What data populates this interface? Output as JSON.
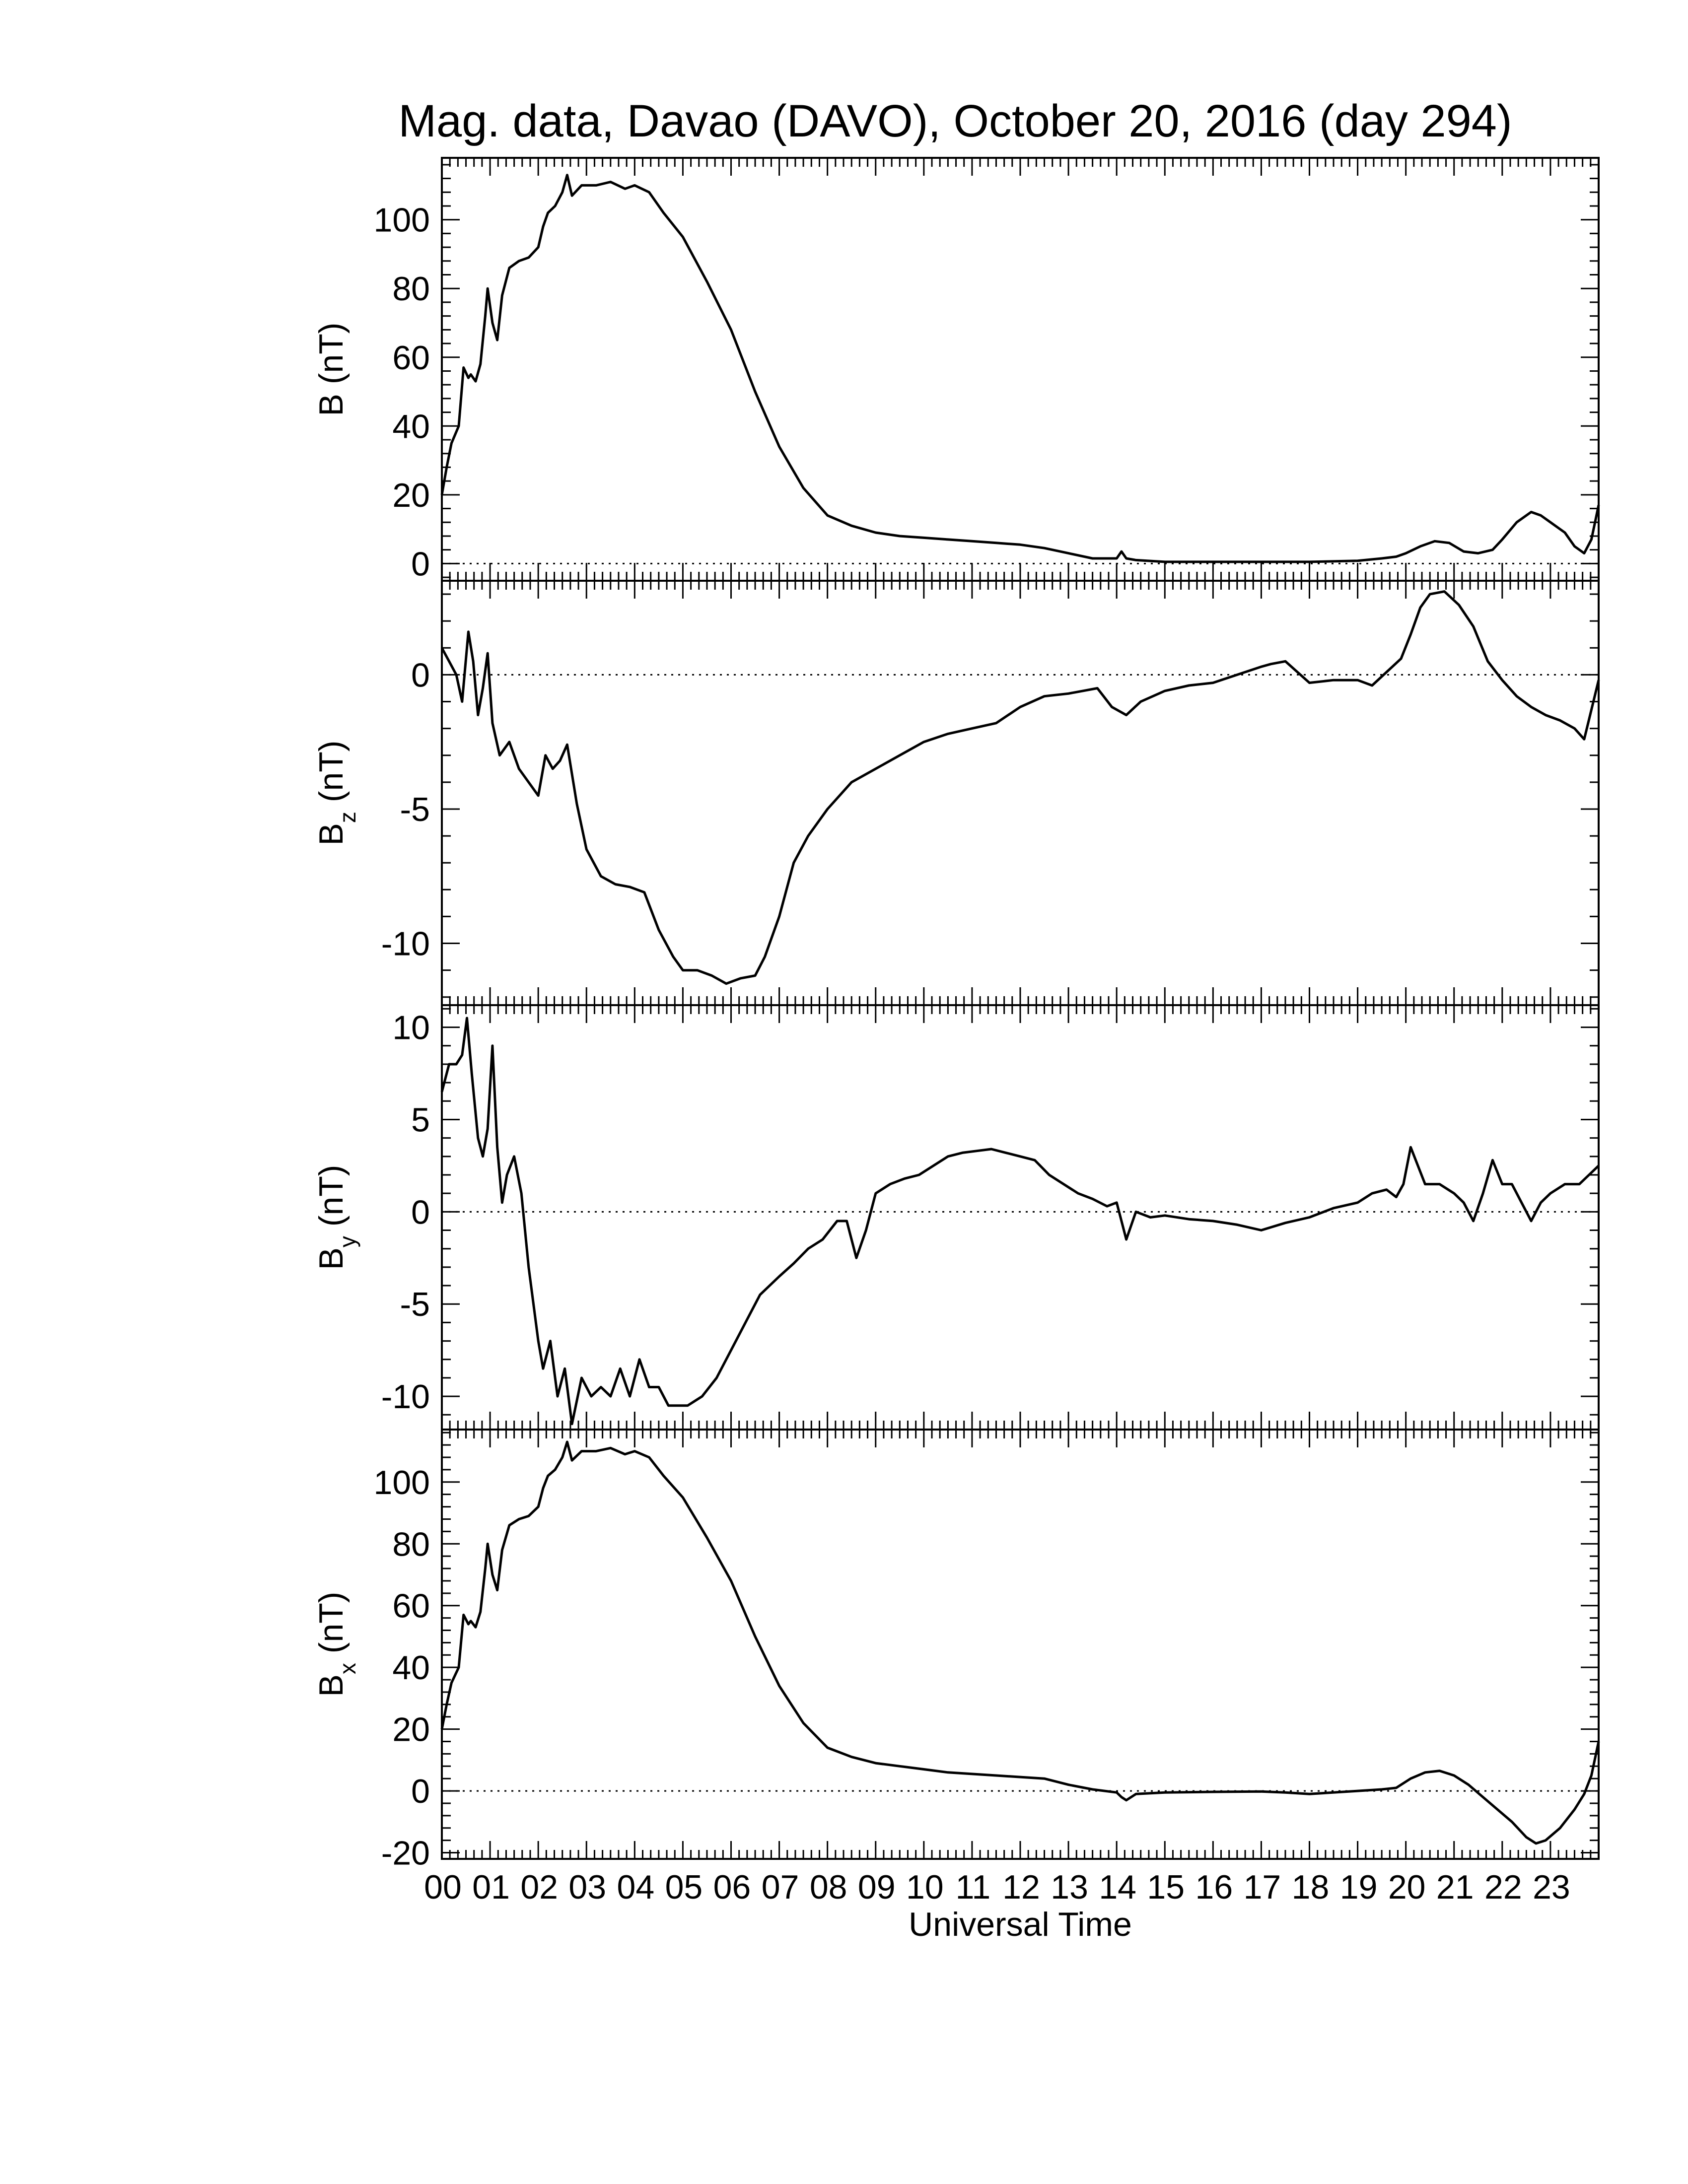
{
  "title": "Mag. data, Davao (DAVO), October 20, 2016 (day 294)",
  "xlabel": "Universal Time",
  "chart_data": [
    {
      "type": "line",
      "ylabel": "B (nT)",
      "ylabel_main": "B",
      "ylabel_sub": "",
      "ylabel_unit": "(nT)",
      "ylim": [
        -5,
        118
      ],
      "yticks": [
        0,
        20,
        40,
        60,
        80,
        100
      ],
      "ytick_labels": [
        "0",
        "20",
        "40",
        "60",
        "80",
        "100"
      ],
      "xlim": [
        0,
        24
      ],
      "zero_line": true,
      "x": [
        0,
        0.1,
        0.2,
        0.35,
        0.45,
        0.55,
        0.6,
        0.7,
        0.8,
        0.9,
        0.95,
        1.05,
        1.15,
        1.25,
        1.4,
        1.6,
        1.8,
        2.0,
        2.1,
        2.2,
        2.35,
        2.5,
        2.6,
        2.7,
        2.9,
        3.2,
        3.5,
        3.8,
        4.0,
        4.3,
        4.6,
        5.0,
        5.5,
        6.0,
        6.5,
        7.0,
        7.5,
        8.0,
        8.5,
        9.0,
        9.5,
        10.0,
        10.5,
        11.0,
        11.5,
        12.0,
        12.5,
        13.0,
        13.5,
        14.0,
        14.1,
        14.2,
        14.4,
        15.0,
        16.0,
        17.0,
        18.0,
        19.0,
        19.5,
        19.8,
        20.0,
        20.3,
        20.6,
        20.9,
        21.2,
        21.5,
        21.8,
        22.0,
        22.3,
        22.6,
        22.8,
        23.0,
        23.3,
        23.5,
        23.7,
        23.85,
        24.0
      ],
      "values": [
        20,
        28,
        35,
        40,
        57,
        54,
        55,
        53,
        58,
        72,
        80,
        70,
        65,
        78,
        86,
        88,
        89,
        92,
        98,
        102,
        104,
        108,
        113,
        107,
        110,
        110,
        111,
        109,
        110,
        108,
        102,
        95,
        82,
        68,
        50,
        34,
        22,
        14,
        11,
        9,
        8,
        7.5,
        7,
        6.5,
        6,
        5.5,
        4.5,
        3,
        1.5,
        1.5,
        3.5,
        1.5,
        1,
        0.5,
        0.5,
        0.5,
        0.5,
        0.8,
        1.5,
        2,
        3,
        5,
        6.5,
        6,
        3.5,
        3,
        4,
        7,
        12,
        15,
        14,
        12,
        9,
        5,
        3,
        7,
        17
      ]
    },
    {
      "type": "line",
      "ylabel": "Bz (nT)",
      "ylabel_main": "B",
      "ylabel_sub": "z",
      "ylabel_unit": "(nT)",
      "ylim": [
        -12.3,
        3.5
      ],
      "yticks": [
        -10,
        -5,
        0
      ],
      "ytick_labels": [
        "-10",
        "-5",
        "0"
      ],
      "xlim": [
        0,
        24
      ],
      "zero_line": true,
      "x": [
        0,
        0.15,
        0.3,
        0.42,
        0.55,
        0.65,
        0.75,
        0.85,
        0.95,
        1.05,
        1.2,
        1.4,
        1.6,
        1.8,
        2.0,
        2.15,
        2.3,
        2.45,
        2.6,
        2.8,
        3.0,
        3.3,
        3.6,
        3.9,
        4.2,
        4.5,
        4.8,
        5.0,
        5.3,
        5.6,
        5.9,
        6.2,
        6.5,
        6.7,
        7.0,
        7.3,
        7.6,
        8.0,
        8.5,
        9.0,
        9.5,
        10.0,
        10.5,
        11.0,
        11.5,
        12.0,
        12.5,
        13.0,
        13.3,
        13.6,
        13.9,
        14.2,
        14.5,
        15.0,
        15.5,
        16.0,
        16.5,
        17.0,
        17.2,
        17.5,
        18.0,
        18.5,
        19.0,
        19.3,
        19.6,
        19.9,
        20.1,
        20.3,
        20.5,
        20.8,
        21.1,
        21.4,
        21.7,
        22.0,
        22.3,
        22.6,
        22.9,
        23.2,
        23.5,
        23.7,
        24.0
      ],
      "values": [
        1,
        0.5,
        0,
        -1,
        1.6,
        0.5,
        -1.5,
        -0.5,
        0.8,
        -1.8,
        -3,
        -2.5,
        -3.5,
        -4,
        -4.5,
        -3,
        -3.5,
        -3.2,
        -2.6,
        -4.8,
        -6.5,
        -7.5,
        -7.8,
        -7.9,
        -8.1,
        -9.5,
        -10.5,
        -11,
        -11,
        -11.2,
        -11.5,
        -11.3,
        -11.2,
        -10.5,
        -9,
        -7,
        -6,
        -5,
        -4,
        -3.5,
        -3,
        -2.5,
        -2.2,
        -2,
        -1.8,
        -1.2,
        -0.8,
        -0.7,
        -0.6,
        -0.5,
        -1.2,
        -1.5,
        -1,
        -0.6,
        -0.4,
        -0.3,
        0,
        0.3,
        0.4,
        0.5,
        -0.3,
        -0.2,
        -0.2,
        -0.4,
        0.1,
        0.6,
        1.5,
        2.5,
        3,
        3.1,
        2.6,
        1.8,
        0.5,
        -0.2,
        -0.8,
        -1.2,
        -1.5,
        -1.7,
        -2,
        -2.4,
        -0.2
      ]
    },
    {
      "type": "line",
      "ylabel": "By (nT)",
      "ylabel_main": "B",
      "ylabel_sub": "y",
      "ylabel_unit": "(nT)",
      "ylim": [
        -11.8,
        11.2
      ],
      "yticks": [
        -10,
        -5,
        0,
        5,
        10
      ],
      "ytick_labels": [
        "-10",
        "-5",
        "0",
        "5",
        "10"
      ],
      "xlim": [
        0,
        24
      ],
      "zero_line": true,
      "x": [
        0,
        0.15,
        0.3,
        0.42,
        0.52,
        0.62,
        0.75,
        0.85,
        0.95,
        1.05,
        1.15,
        1.25,
        1.35,
        1.5,
        1.65,
        1.8,
        1.9,
        2.0,
        2.1,
        2.25,
        2.4,
        2.55,
        2.7,
        2.9,
        3.1,
        3.3,
        3.5,
        3.7,
        3.9,
        4.1,
        4.3,
        4.5,
        4.7,
        4.9,
        5.1,
        5.4,
        5.7,
        6.0,
        6.3,
        6.6,
        7.0,
        7.3,
        7.6,
        7.9,
        8.2,
        8.4,
        8.6,
        8.8,
        9.0,
        9.3,
        9.6,
        9.9,
        10.2,
        10.5,
        10.8,
        11.1,
        11.4,
        11.7,
        12.0,
        12.3,
        12.6,
        12.9,
        13.2,
        13.5,
        13.8,
        14.0,
        14.2,
        14.4,
        14.7,
        15.0,
        15.5,
        16.0,
        16.5,
        17.0,
        17.5,
        18.0,
        18.5,
        19.0,
        19.3,
        19.6,
        19.8,
        19.95,
        20.1,
        20.4,
        20.7,
        21.0,
        21.2,
        21.4,
        21.6,
        21.8,
        22.0,
        22.2,
        22.4,
        22.6,
        22.8,
        23.0,
        23.3,
        23.6,
        23.8,
        24.0
      ],
      "values": [
        6.5,
        8,
        8,
        8.5,
        10.5,
        7.5,
        4,
        3,
        4.5,
        9,
        3.5,
        0.5,
        2,
        3,
        1,
        -3,
        -5,
        -7,
        -8.5,
        -7,
        -10,
        -8.5,
        -11.5,
        -9,
        -10,
        -9.5,
        -10,
        -8.5,
        -10,
        -8,
        -9.5,
        -9.5,
        -10.5,
        -10.5,
        -10.5,
        -10,
        -9,
        -7.5,
        -6,
        -4.5,
        -3.5,
        -2.8,
        -2,
        -1.5,
        -0.5,
        -0.5,
        -2.5,
        -1,
        1,
        1.5,
        1.8,
        2,
        2.5,
        3,
        3.2,
        3.3,
        3.4,
        3.2,
        3,
        2.8,
        2,
        1.5,
        1,
        0.7,
        0.3,
        0.5,
        -1.5,
        0,
        -0.3,
        -0.2,
        -0.4,
        -0.5,
        -0.7,
        -1,
        -0.6,
        -0.3,
        0.2,
        0.5,
        1,
        1.2,
        0.8,
        1.5,
        3.5,
        1.5,
        1.5,
        1,
        0.5,
        -0.5,
        1,
        2.8,
        1.5,
        1.5,
        0.5,
        -0.5,
        0.5,
        1,
        1.5,
        1.5,
        2,
        2.5
      ]
    },
    {
      "type": "line",
      "ylabel": "Bx (nT)",
      "ylabel_main": "B",
      "ylabel_sub": "x",
      "ylabel_unit": "(nT)",
      "ylim": [
        -22,
        117
      ],
      "yticks": [
        -20,
        0,
        20,
        40,
        60,
        80,
        100
      ],
      "ytick_labels": [
        "-20",
        "0",
        "20",
        "40",
        "60",
        "80",
        "100"
      ],
      "xlim": [
        0,
        24
      ],
      "xticks": [
        0,
        1,
        2,
        3,
        4,
        5,
        6,
        7,
        8,
        9,
        10,
        11,
        12,
        13,
        14,
        15,
        16,
        17,
        18,
        19,
        20,
        21,
        22,
        23
      ],
      "xtick_labels": [
        "00",
        "01",
        "02",
        "03",
        "04",
        "05",
        "06",
        "07",
        "08",
        "09",
        "10",
        "11",
        "12",
        "13",
        "14",
        "15",
        "16",
        "17",
        "18",
        "19",
        "20",
        "21",
        "22",
        "23"
      ],
      "zero_line": true,
      "x": [
        0,
        0.1,
        0.2,
        0.35,
        0.45,
        0.55,
        0.6,
        0.7,
        0.8,
        0.9,
        0.95,
        1.05,
        1.15,
        1.25,
        1.4,
        1.6,
        1.8,
        2.0,
        2.1,
        2.2,
        2.35,
        2.5,
        2.6,
        2.7,
        2.9,
        3.2,
        3.5,
        3.8,
        4.0,
        4.3,
        4.6,
        5.0,
        5.5,
        6.0,
        6.5,
        7.0,
        7.5,
        8.0,
        8.5,
        9.0,
        9.5,
        10.0,
        10.5,
        11.0,
        11.5,
        12.0,
        12.5,
        13.0,
        13.5,
        14.0,
        14.1,
        14.2,
        14.4,
        15.0,
        16.0,
        17.0,
        17.5,
        18.0,
        19.0,
        19.5,
        19.8,
        20.1,
        20.4,
        20.7,
        21.0,
        21.3,
        21.6,
        21.9,
        22.2,
        22.5,
        22.7,
        22.9,
        23.2,
        23.5,
        23.7,
        23.85,
        24.0
      ],
      "values": [
        20,
        28,
        35,
        40,
        57,
        54,
        55,
        53,
        58,
        72,
        80,
        70,
        65,
        78,
        86,
        88,
        89,
        92,
        98,
        102,
        104,
        108,
        113,
        107,
        110,
        110,
        111,
        109,
        110,
        108,
        102,
        95,
        82,
        68,
        50,
        34,
        22,
        14,
        11,
        9,
        8,
        7,
        6,
        5.5,
        5,
        4.5,
        4,
        2,
        0.5,
        -0.5,
        -2,
        -3,
        -1,
        -0.5,
        -0.3,
        -0.2,
        -0.5,
        -1,
        0,
        0.5,
        1,
        4,
        6,
        6.5,
        5,
        2,
        -2,
        -6,
        -10,
        -15,
        -17,
        -16,
        -12,
        -6,
        -1,
        5,
        16
      ]
    }
  ]
}
